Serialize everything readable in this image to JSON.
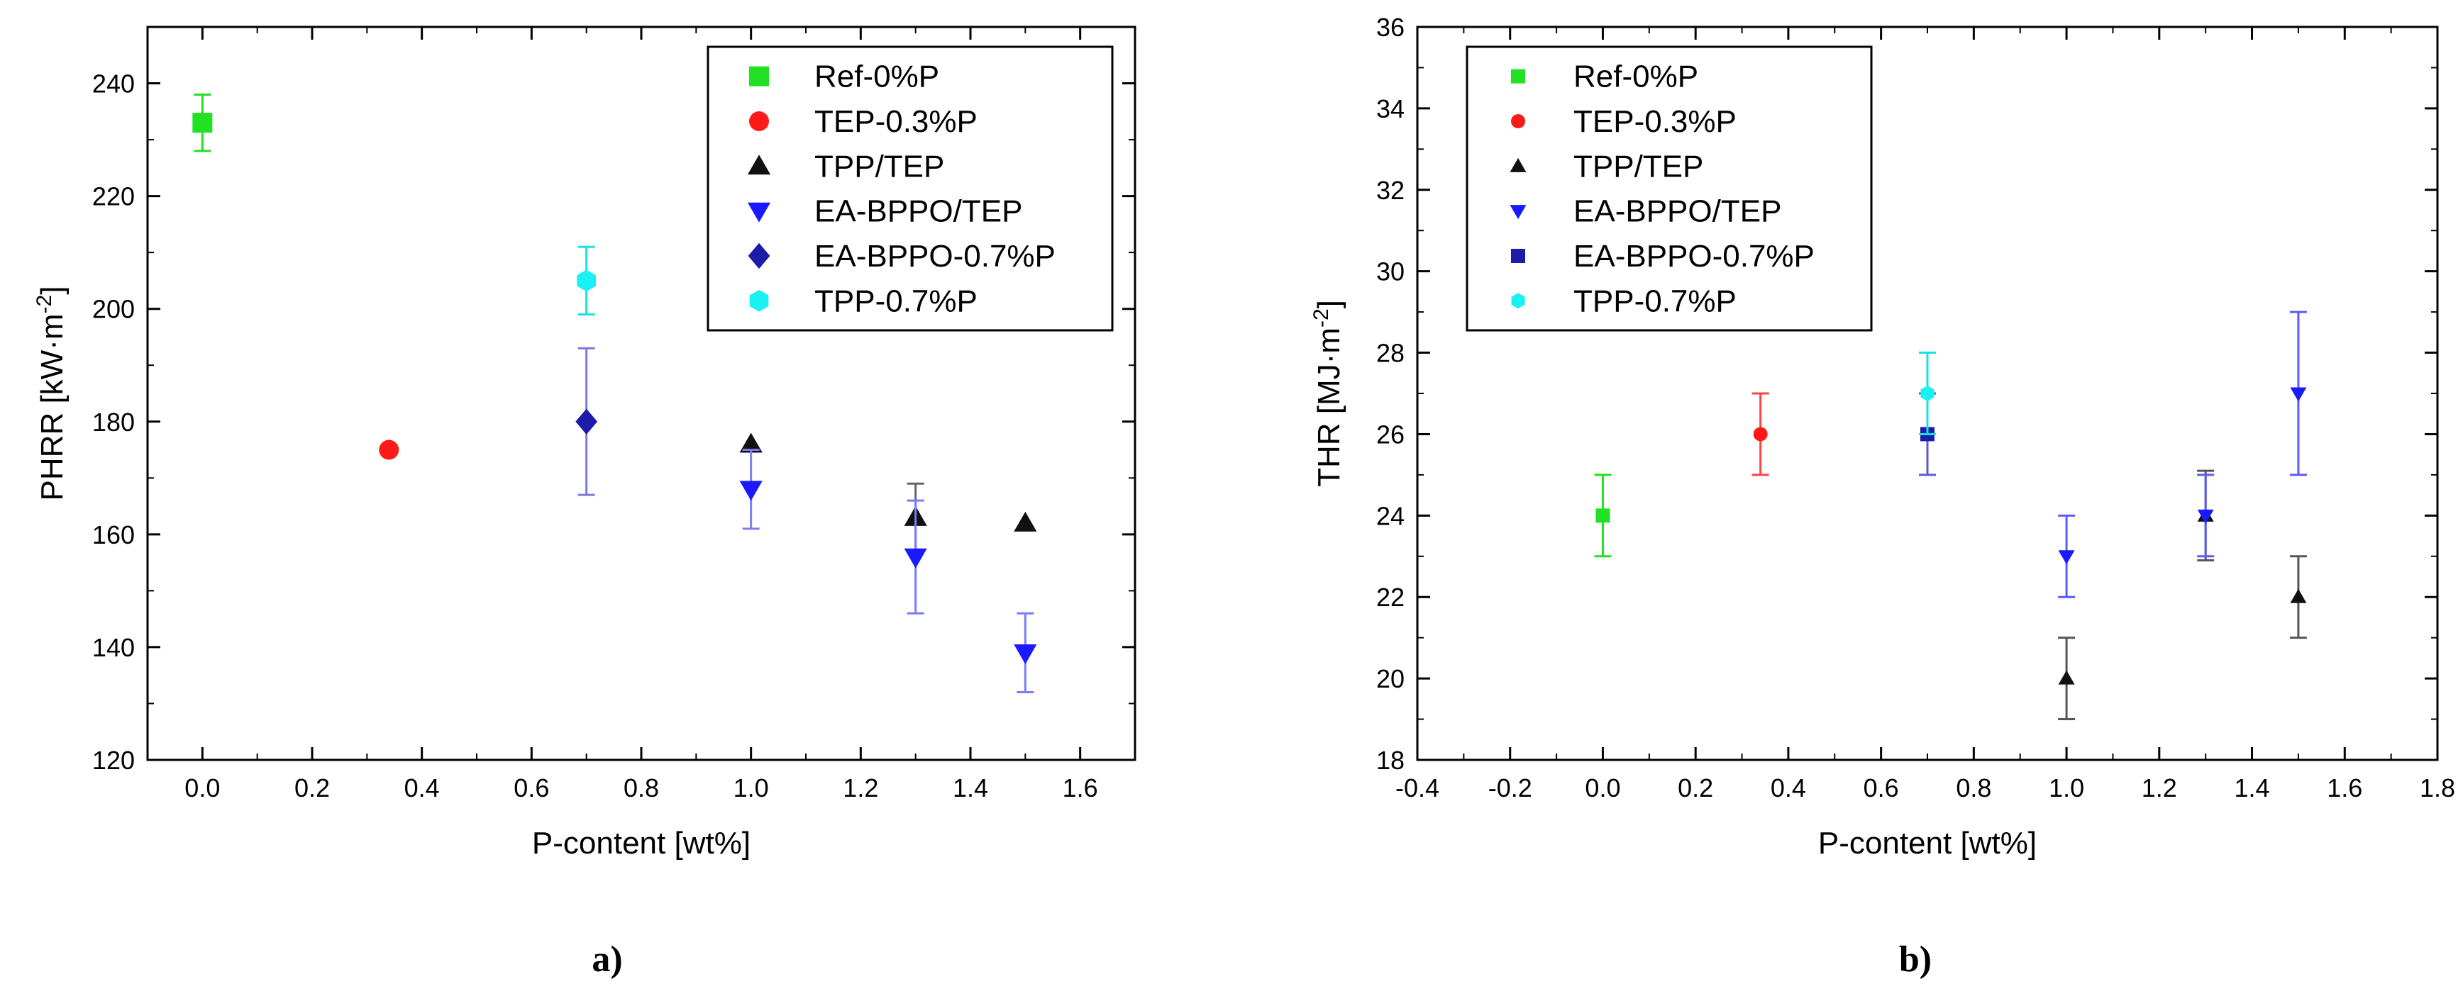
{
  "chart_data": [
    {
      "type": "scatter",
      "panel_label": "a)",
      "xlabel": "P-content [wt%]",
      "ylabel_base": "PHRR [kW·m",
      "ylabel_sup": "-2",
      "ylabel_end": "]",
      "xlim": [
        -0.1,
        1.7
      ],
      "ylim": [
        120,
        250
      ],
      "xticks": [
        0.0,
        0.2,
        0.4,
        0.6,
        0.8,
        1.0,
        1.2,
        1.4,
        1.6
      ],
      "xtick_labels": [
        "0.0",
        "0.2",
        "0.4",
        "0.6",
        "0.8",
        "1.0",
        "1.2",
        "1.4",
        "1.6"
      ],
      "yticks": [
        120,
        140,
        160,
        180,
        200,
        220,
        240
      ],
      "ytick_labels": [
        "120",
        "140",
        "160",
        "180",
        "200",
        "220",
        "240"
      ],
      "legend_position": "top-right",
      "series": [
        {
          "name": "Ref-0%P",
          "marker": "square",
          "color": "#22e022",
          "errcolor": "#22e022",
          "points": [
            {
              "x": 0.0,
              "y": 233,
              "err": 5
            }
          ]
        },
        {
          "name": "TEP-0.3%P",
          "marker": "circle",
          "color": "#ff1a1a",
          "errcolor": "#ff1a1a",
          "points": [
            {
              "x": 0.34,
              "y": 175,
              "err": 0
            }
          ]
        },
        {
          "name": "TPP/TEP",
          "marker": "triangle-up",
          "color": "#111111",
          "errcolor": "#666666",
          "points": [
            {
              "x": 1.0,
              "y": 176,
              "err": 0
            },
            {
              "x": 1.3,
              "y": 163,
              "err": 6
            },
            {
              "x": 1.5,
              "y": 162,
              "err": 0
            }
          ]
        },
        {
          "name": "EA-BPPO/TEP",
          "marker": "triangle-down",
          "color": "#1a1aff",
          "errcolor": "#7b7bff",
          "points": [
            {
              "x": 1.0,
              "y": 168,
              "err": 7
            },
            {
              "x": 1.3,
              "y": 156,
              "err": 10
            },
            {
              "x": 1.5,
              "y": 139,
              "err": 7
            }
          ]
        },
        {
          "name": "EA-BPPO-0.7%P",
          "marker": "diamond",
          "color": "#1c1ca8",
          "errcolor": "#7b7bd6",
          "points": [
            {
              "x": 0.7,
              "y": 180,
              "err": 13
            }
          ]
        },
        {
          "name": "TPP-0.7%P",
          "marker": "hexagon",
          "color": "#19f2f2",
          "errcolor": "#19e0e0",
          "points": [
            {
              "x": 0.7,
              "y": 205,
              "err": 6
            }
          ]
        }
      ]
    },
    {
      "type": "scatter",
      "panel_label": "b)",
      "xlabel": "P-content [wt%]",
      "ylabel_base": "THR [MJ·m",
      "ylabel_sup": "-2",
      "ylabel_end": "]",
      "xlim": [
        -0.4,
        1.8
      ],
      "ylim": [
        18,
        36
      ],
      "xticks": [
        -0.4,
        -0.2,
        0.0,
        0.2,
        0.4,
        0.6,
        0.8,
        1.0,
        1.2,
        1.4,
        1.6,
        1.8
      ],
      "xtick_labels": [
        "-0.4",
        "-0.2",
        "0.0",
        "0.2",
        "0.4",
        "0.6",
        "0.8",
        "1.0",
        "1.2",
        "1.4",
        "1.6",
        "1.8"
      ],
      "yticks": [
        18,
        20,
        22,
        24,
        26,
        28,
        30,
        32,
        34,
        36
      ],
      "ytick_labels": [
        "18",
        "20",
        "22",
        "24",
        "26",
        "28",
        "30",
        "32",
        "34",
        "36"
      ],
      "legend_position": "top-left",
      "series": [
        {
          "name": "Ref-0%P",
          "marker": "square",
          "color": "#22e022",
          "errcolor": "#22e022",
          "points": [
            {
              "x": 0.0,
              "y": 24,
              "err": 1
            }
          ]
        },
        {
          "name": "TEP-0.3%P",
          "marker": "circle",
          "color": "#ff1a1a",
          "errcolor": "#ff4444",
          "points": [
            {
              "x": 0.34,
              "y": 26,
              "err": 1
            }
          ]
        },
        {
          "name": "TPP/TEP",
          "marker": "triangle-up",
          "color": "#111111",
          "errcolor": "#555555",
          "points": [
            {
              "x": 1.0,
              "y": 20,
              "err": 1
            },
            {
              "x": 1.3,
              "y": 24,
              "err": 1.1
            },
            {
              "x": 1.5,
              "y": 22,
              "err": 1
            }
          ]
        },
        {
          "name": "EA-BPPO/TEP",
          "marker": "triangle-down",
          "color": "#1a1aff",
          "errcolor": "#5a5aff",
          "points": [
            {
              "x": 1.0,
              "y": 23,
              "err": 1
            },
            {
              "x": 1.3,
              "y": 24,
              "err": 1
            },
            {
              "x": 1.5,
              "y": 27,
              "err": 2
            }
          ]
        },
        {
          "name": "EA-BPPO-0.7%P",
          "marker": "square",
          "color": "#1c1ca8",
          "errcolor": "#5a5ad6",
          "points": [
            {
              "x": 0.7,
              "y": 26,
              "err": 1
            }
          ]
        },
        {
          "name": "TPP-0.7%P",
          "marker": "hexagon",
          "color": "#19f2f2",
          "errcolor": "#19e0e0",
          "points": [
            {
              "x": 0.7,
              "y": 27,
              "err": 1
            }
          ]
        }
      ]
    }
  ]
}
